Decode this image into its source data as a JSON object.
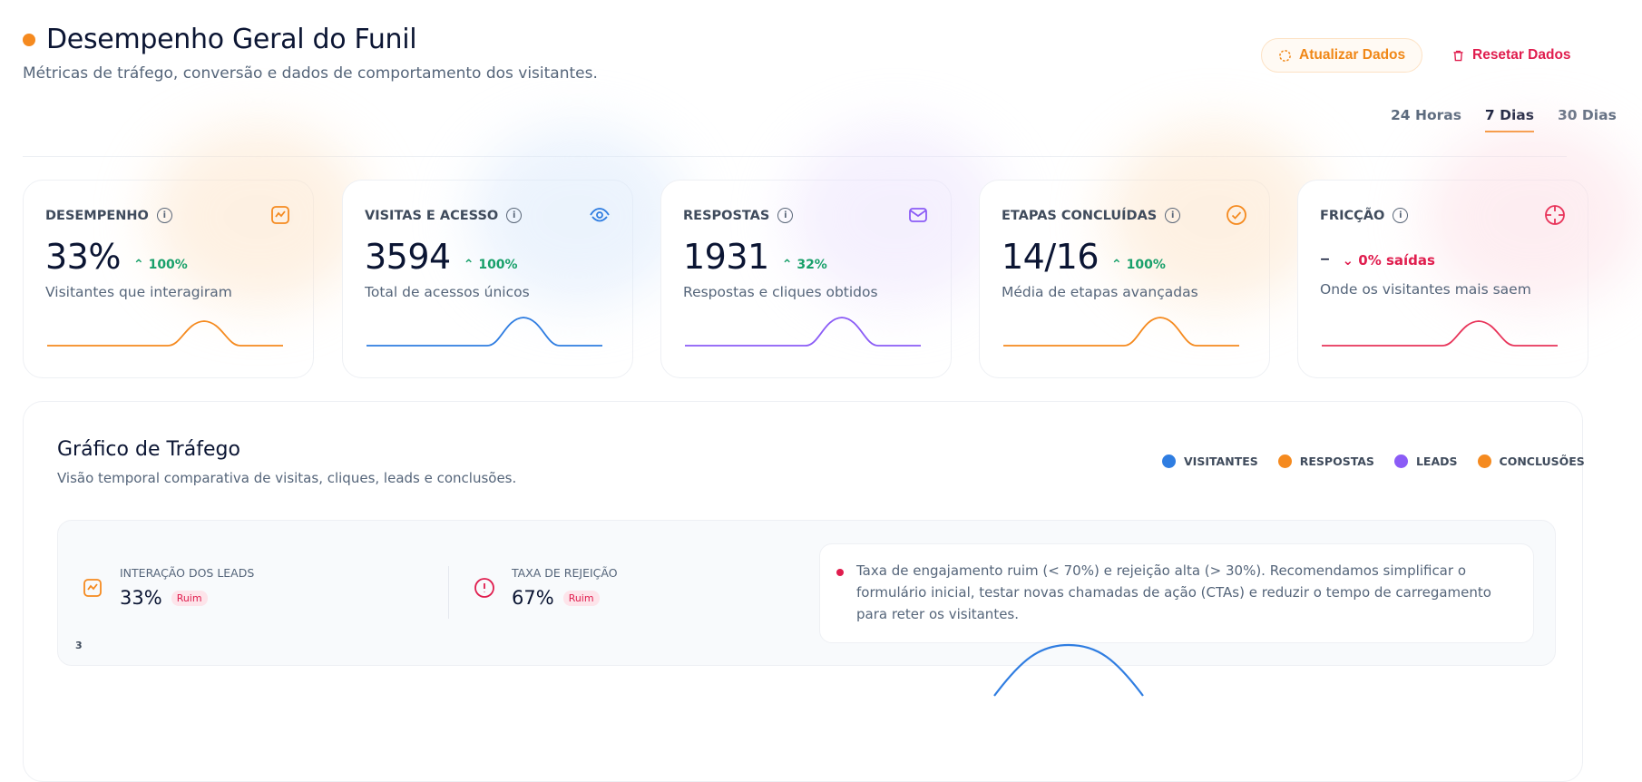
{
  "header": {
    "title": "Desempenho Geral do Funil",
    "subtitle": "Métricas de tráfego, conversão e dados de comportamento dos visitantes.",
    "accent_color": "#f58a1f"
  },
  "actions": {
    "refresh_label": "Atualizar Dados",
    "refresh_icon": "refresh-icon",
    "reset_label": "Resetar Dados",
    "reset_icon": "trash-icon"
  },
  "tabs": [
    {
      "label": "24 Horas",
      "active": false
    },
    {
      "label": "7 Dias",
      "active": true
    },
    {
      "label": "30 Dias",
      "active": false
    }
  ],
  "cards": [
    {
      "label": "DESEMPENHO",
      "icon": "trend-chart-icon",
      "value": "33%",
      "delta": "100%",
      "delta_direction": "up",
      "description": "Visitantes que interagiram",
      "color": "#f58a1f",
      "glow": "#fde3c7"
    },
    {
      "label": "VISITAS E ACESSO",
      "icon": "eye-icon",
      "value": "3594",
      "delta": "100%",
      "delta_direction": "up",
      "description": "Total de acessos únicos",
      "color": "#2f7de1",
      "glow": "#d9e8fb"
    },
    {
      "label": "RESPOSTAS",
      "icon": "mail-icon",
      "value": "1931",
      "delta": "32%",
      "delta_direction": "up",
      "description": "Respostas e cliques obtidos",
      "color": "#8b5cf6",
      "glow": "#ebe2fd"
    },
    {
      "label": "ETAPAS CONCLUÍDAS",
      "icon": "check-circle-icon",
      "value": "14/16",
      "delta": "100%",
      "delta_direction": "up",
      "description": "Média de etapas avançadas",
      "color": "#f58a1f",
      "glow": "#fde3c7"
    },
    {
      "label": "FRICÇÃO",
      "icon": "crosshair-icon",
      "value": "–",
      "delta": "0% saídas",
      "delta_direction": "down",
      "description": "Onde os visitantes mais saem",
      "color": "#e8345a",
      "glow": "#fcdde4"
    }
  ],
  "traffic": {
    "title": "Gráfico de Tráfego",
    "subtitle": "Visão temporal comparativa de visitas, cliques, leads e conclusões.",
    "legend": [
      {
        "label": "VISITANTES",
        "color": "#2f7de1"
      },
      {
        "label": "RESPOSTAS",
        "color": "#f58a1f"
      },
      {
        "label": "LEADS",
        "color": "#8b5cf6"
      },
      {
        "label": "CONCLUSÕES",
        "color": "#f58a1f"
      }
    ],
    "y_tick_top": "3"
  },
  "insights": {
    "lead_interaction": {
      "label": "INTERAÇÃO DOS LEADS",
      "value": "33%",
      "badge": "Ruim",
      "icon": "trend-chart-icon"
    },
    "bounce_rate": {
      "label": "TAXA DE REJEIÇÃO",
      "value": "67%",
      "badge": "Ruim",
      "icon": "alert-circle-icon"
    },
    "recommendation": "Taxa de engajamento ruim (< 70%) e rejeição alta (> 30%). Recomendamos simplificar o formulário inicial, testar novas chamadas de ação (CTAs) e reduzir o tempo de carregamento para reter os visitantes."
  }
}
